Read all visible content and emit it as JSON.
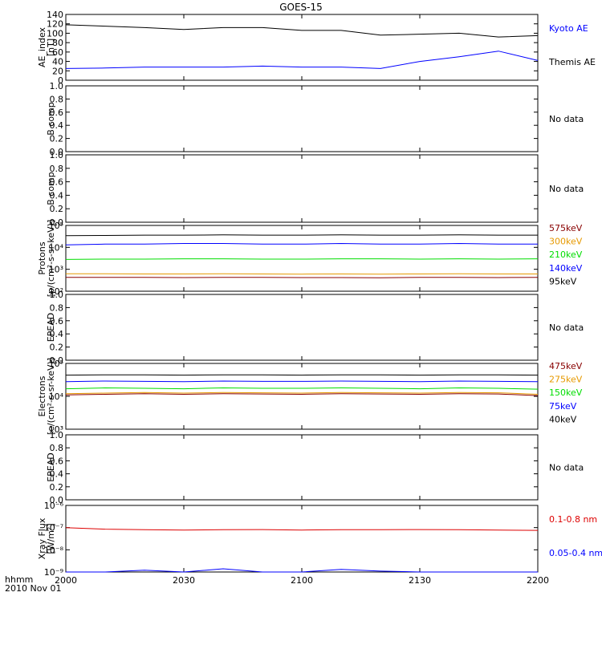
{
  "title": "GOES-15",
  "footer": {
    "time_label": "hhmm",
    "date_label": "2010 Nov 01"
  },
  "x_ticks": [
    "2000",
    "2030",
    "2100",
    "2130",
    "2200"
  ],
  "chart_data": [
    {
      "type": "line",
      "ylabel": [
        "AE_index",
        "[nT]"
      ],
      "ylim": [
        0,
        140
      ],
      "yticks": [
        "0",
        "20",
        "40",
        "60",
        "80",
        "100",
        "120",
        "140"
      ],
      "x": [
        0,
        10,
        20,
        30,
        40,
        50,
        60,
        70,
        80,
        90,
        100,
        110,
        120
      ],
      "series": [
        {
          "name": "Kyoto AE",
          "color": "#0000ff",
          "values": [
            25,
            26,
            28,
            28,
            28,
            30,
            28,
            28,
            25,
            40,
            50,
            62,
            42
          ]
        },
        {
          "name": "Themis AE",
          "color": "#000000",
          "values": [
            118,
            115,
            112,
            108,
            112,
            112,
            106,
            106,
            96,
            98,
            100,
            92,
            95
          ]
        }
      ],
      "legend": [
        "Kyoto AE",
        "Themis AE"
      ],
      "legend_colors": [
        "#0000ff",
        "#000000"
      ]
    },
    {
      "type": "line",
      "ylabel": [
        "B comp"
      ],
      "ylim": [
        0,
        1
      ],
      "yticks": [
        "0.0",
        "0.2",
        "0.4",
        "0.6",
        "0.8",
        "1.0"
      ],
      "series": [],
      "note": "No data"
    },
    {
      "type": "line",
      "ylabel": [
        "B comp"
      ],
      "ylim": [
        0,
        1
      ],
      "yticks": [
        "0.0",
        "0.2",
        "0.4",
        "0.6",
        "0.8",
        "1.0"
      ],
      "series": [],
      "note": "No data"
    },
    {
      "type": "line",
      "log": true,
      "ylabel": [
        "Protons",
        "[p/(cm²-s-sr-keV)]"
      ],
      "ylim": [
        100,
        100000
      ],
      "yticks": [
        "10²",
        "10³",
        "10⁴",
        "10⁵"
      ],
      "x": [
        0,
        10,
        20,
        30,
        40,
        50,
        60,
        70,
        80,
        90,
        100,
        110,
        120
      ],
      "series": [
        {
          "name": "575keV",
          "color": "#880000",
          "values": [
            430,
            430,
            430,
            420,
            430,
            430,
            420,
            420,
            410,
            430,
            430,
            420,
            430
          ]
        },
        {
          "name": "300keV",
          "color": "#e69900",
          "values": [
            620,
            620,
            610,
            610,
            620,
            610,
            600,
            610,
            600,
            610,
            620,
            610,
            610
          ]
        },
        {
          "name": "210keV",
          "color": "#00dd00",
          "values": [
            2800,
            2900,
            2900,
            3000,
            3000,
            2900,
            2900,
            3000,
            3000,
            2900,
            3000,
            2900,
            3000
          ]
        },
        {
          "name": "140keV",
          "color": "#0000ff",
          "values": [
            13000,
            14000,
            14000,
            15000,
            15000,
            14000,
            14000,
            15000,
            14000,
            14000,
            15000,
            14000,
            14000
          ]
        },
        {
          "name": "95keV",
          "color": "#000000",
          "values": [
            34000,
            35000,
            36000,
            36000,
            37000,
            36000,
            36000,
            37000,
            36000,
            36000,
            37000,
            36000,
            36000
          ]
        }
      ],
      "legend": [
        "575keV",
        "300keV",
        "210keV",
        "140keV",
        "95keV"
      ],
      "legend_colors": [
        "#880000",
        "#e69900",
        "#00dd00",
        "#0000ff",
        "#000000"
      ]
    },
    {
      "type": "line",
      "ylabel": [
        "EPEAD"
      ],
      "ylim": [
        0,
        1
      ],
      "yticks": [
        "0.0",
        "0.2",
        "0.4",
        "0.6",
        "0.8",
        "1.0"
      ],
      "series": [],
      "note": "No data"
    },
    {
      "type": "line",
      "log": true,
      "ylabel": [
        "Electrons",
        "[e/(cm²-s-sr-keV)]"
      ],
      "ylim": [
        1000,
        100000
      ],
      "yticks": [
        "10³",
        "10⁴",
        "10⁵"
      ],
      "x": [
        0,
        10,
        20,
        30,
        40,
        50,
        60,
        70,
        80,
        90,
        100,
        110,
        120
      ],
      "series": [
        {
          "name": "475keV",
          "color": "#880000",
          "values": [
            11000,
            11500,
            12000,
            11500,
            12000,
            11800,
            11500,
            12000,
            11800,
            11500,
            12000,
            11800,
            10500
          ]
        },
        {
          "name": "275keV",
          "color": "#e69900",
          "values": [
            12000,
            12500,
            13000,
            12500,
            13000,
            12800,
            12500,
            13000,
            12800,
            12500,
            13000,
            12800,
            11500
          ]
        },
        {
          "name": "150keV",
          "color": "#00dd00",
          "values": [
            17000,
            18000,
            17500,
            17000,
            18000,
            17500,
            17500,
            18000,
            17500,
            17000,
            18000,
            17500,
            16500
          ]
        },
        {
          "name": "75keV",
          "color": "#0000ff",
          "values": [
            28000,
            29000,
            28500,
            28000,
            29000,
            28500,
            28500,
            29000,
            28500,
            28000,
            29000,
            28500,
            28000
          ]
        },
        {
          "name": "40keV",
          "color": "#000000",
          "values": [
            44000,
            45000,
            45000,
            44000,
            45000,
            45000,
            44000,
            45000,
            45000,
            44000,
            45000,
            45000,
            44000
          ]
        }
      ],
      "legend": [
        "475keV",
        "275keV",
        "150keV",
        "75keV",
        "40keV"
      ],
      "legend_colors": [
        "#880000",
        "#e69900",
        "#00dd00",
        "#0000ff",
        "#000000"
      ]
    },
    {
      "type": "line",
      "ylabel": [
        "EPEAD"
      ],
      "ylim": [
        0,
        1
      ],
      "yticks": [
        "0.0",
        "0.2",
        "0.4",
        "0.6",
        "0.8",
        "1.0"
      ],
      "series": [],
      "note": "No data"
    },
    {
      "type": "line",
      "log": true,
      "ylabel": [
        "Xray Flux",
        "[W/m²]"
      ],
      "ylim": [
        1e-09,
        1e-06
      ],
      "yticks": [
        "10⁻⁹",
        "10⁻⁸",
        "10⁻⁷",
        "10⁻⁶"
      ],
      "x": [
        0,
        10,
        20,
        30,
        40,
        50,
        60,
        70,
        80,
        90,
        100,
        110,
        120
      ],
      "series": [
        {
          "name": "0.1-0.8 nm",
          "color": "#dd0000",
          "values": [
            1e-07,
            8.5e-08,
            8e-08,
            7.8e-08,
            8e-08,
            8.2e-08,
            7.8e-08,
            8e-08,
            8e-08,
            8.2e-08,
            8e-08,
            7.8e-08,
            7.5e-08
          ]
        },
        {
          "name": "0.05-0.4 nm",
          "color": "#0000ff",
          "values": [
            1e-09,
            1e-09,
            1.2e-09,
            1e-09,
            1.4e-09,
            1e-09,
            1e-09,
            1.3e-09,
            1.1e-09,
            1e-09,
            1e-09,
            1e-09,
            1e-09
          ]
        }
      ],
      "legend": [
        "0.1-0.8 nm",
        "0.05-0.4 nm"
      ],
      "legend_colors": [
        "#dd0000",
        "#0000ff"
      ]
    }
  ]
}
